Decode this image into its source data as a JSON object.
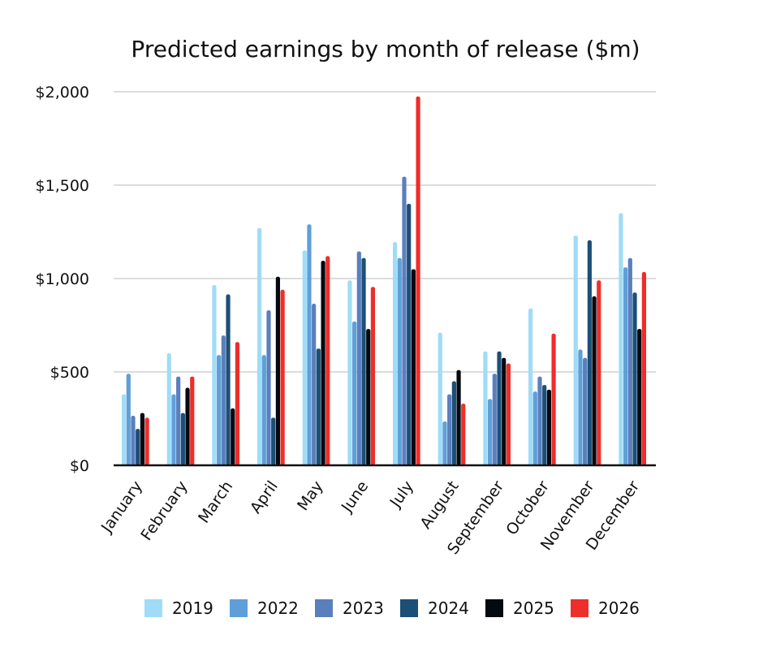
{
  "chart_data": {
    "type": "bar",
    "title": "Predicted earnings by month of release ($m)",
    "xlabel": "",
    "ylabel": "",
    "ylim": [
      0,
      2000
    ],
    "yticks": [
      0,
      500,
      1000,
      1500,
      2000
    ],
    "ytick_labels": [
      "$0",
      "$500",
      "$1,000",
      "$1,500",
      "$2,000"
    ],
    "grid": true,
    "legend_position": "bottom",
    "categories": [
      "January",
      "February",
      "March",
      "April",
      "May",
      "June",
      "July",
      "August",
      "September",
      "October",
      "November",
      "December"
    ],
    "series": [
      {
        "name": "2019",
        "color": "#9fdcf7",
        "values": [
          380,
          600,
          965,
          1270,
          1150,
          990,
          1195,
          710,
          610,
          840,
          1230,
          1350
        ]
      },
      {
        "name": "2022",
        "color": "#5e9fd9",
        "values": [
          490,
          380,
          590,
          590,
          1290,
          770,
          1110,
          235,
          355,
          395,
          620,
          1060
        ]
      },
      {
        "name": "2023",
        "color": "#5a7fbd",
        "values": [
          265,
          475,
          695,
          830,
          865,
          1145,
          1545,
          380,
          490,
          475,
          575,
          1110
        ]
      },
      {
        "name": "2024",
        "color": "#1c4f78",
        "values": [
          195,
          280,
          915,
          255,
          625,
          1110,
          1400,
          450,
          610,
          430,
          1205,
          925
        ]
      },
      {
        "name": "2025",
        "color": "#050a10",
        "values": [
          280,
          415,
          305,
          1010,
          1095,
          730,
          1050,
          510,
          575,
          405,
          905,
          730
        ]
      },
      {
        "name": "2026",
        "color": "#ee2e2a",
        "values": [
          255,
          475,
          660,
          940,
          1120,
          955,
          1975,
          330,
          545,
          705,
          990,
          1035
        ]
      }
    ]
  }
}
